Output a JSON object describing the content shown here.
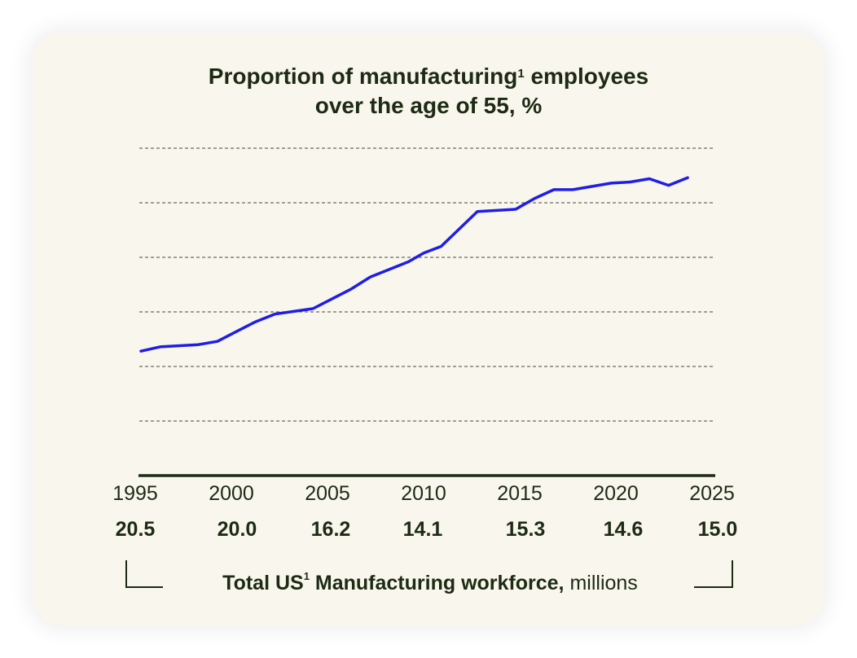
{
  "chart_data": {
    "type": "line",
    "title_part1": "Proportion of manufacturing",
    "title_sup": "1",
    "title_part2": "employees",
    "title_line2": "over the age of 55, %",
    "x_ticks": [
      "1995",
      "2000",
      "2005",
      "2010",
      "2015",
      "2020",
      "2025"
    ],
    "xlim": [
      1995,
      2025
    ],
    "ylim": [
      0,
      30
    ],
    "grid": true,
    "series": [
      {
        "color": "#1e1ee6",
        "x": [
          1995,
          1996,
          1998,
          1999,
          2000,
          2001,
          2002,
          2004,
          2005,
          2006,
          2007,
          2009,
          2009.8,
          2010.7,
          2012.6,
          2014.6,
          2015.6,
          2016.6,
          2017.6,
          2018.6,
          2019.6,
          2020.6,
          2021.6,
          2022.6,
          2023.6
        ],
        "y": [
          11.4,
          11.8,
          12.0,
          12.3,
          13.2,
          14.1,
          14.8,
          15.3,
          16.2,
          17.1,
          18.2,
          19.6,
          20.4,
          21.0,
          24.2,
          24.4,
          25.4,
          26.2,
          26.2,
          26.5,
          26.8,
          26.9,
          27.2,
          26.6,
          27.3
        ]
      }
    ],
    "workforce_values": [
      "20.5",
      "20.0",
      "16.2",
      "14.1",
      "15.3",
      "14.6",
      "15.0"
    ],
    "footer_bold": "Total US",
    "footer_sup": "1",
    "footer_bold2": "Manufacturing workforce,",
    "footer_unit": "millions"
  }
}
